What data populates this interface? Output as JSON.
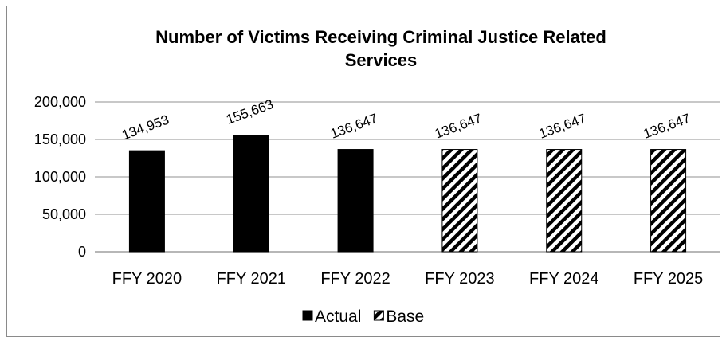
{
  "chart_data": {
    "type": "bar",
    "title": "Number of Victims Receiving Criminal Justice Related Services",
    "title_lines": [
      "Number of Victims Receiving Criminal Justice Related",
      "Services"
    ],
    "categories": [
      "FFY 2020",
      "FFY 2021",
      "FFY 2022",
      "FFY 2023",
      "FFY 2024",
      "FFY 2025"
    ],
    "series": [
      {
        "name": "Actual",
        "color": "#000000",
        "pattern": "solid",
        "values": [
          134953,
          155663,
          136647,
          null,
          null,
          null
        ]
      },
      {
        "name": "Base",
        "color": "#000000",
        "pattern": "diagonal-hatch",
        "values": [
          null,
          null,
          null,
          136647,
          136647,
          136647
        ]
      }
    ],
    "data_labels": [
      "134,953",
      "155,663",
      "136,647",
      "136,647",
      "136,647",
      "136,647"
    ],
    "ylim": [
      0,
      200000
    ],
    "yticks": [
      0,
      50000,
      100000,
      150000,
      200000
    ],
    "ytick_labels": [
      "0",
      "50,000",
      "100,000",
      "150,000",
      "200,000"
    ],
    "grid": true,
    "legend_position": "bottom",
    "xlabel": "",
    "ylabel": ""
  }
}
